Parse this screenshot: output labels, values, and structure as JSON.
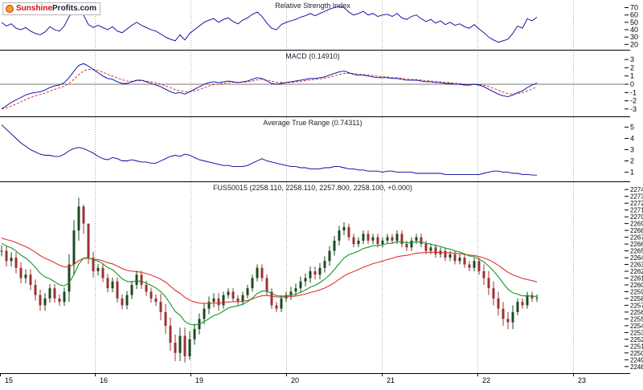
{
  "logo": {
    "part1": "Sunshine",
    "part2": "Profits.com"
  },
  "colors": {
    "line": "#00009b",
    "signal": "#cc2222",
    "ma_fast": "#119922",
    "ma_slow": "#dd3333",
    "up": "#1c4a21",
    "down": "#993333",
    "grid": "#a8a8a8",
    "axis": "#000000",
    "zero": "#777777",
    "title": "#222233"
  },
  "x_axis": {
    "labels": [
      "15",
      "16",
      "19",
      "20",
      "21",
      "22",
      "23"
    ],
    "positions": [
      0,
      118,
      237,
      356,
      475,
      594,
      713
    ]
  },
  "chart_data": [
    {
      "type": "line",
      "title": "Relative Strength Index",
      "yticks": [
        70,
        60,
        50,
        40,
        30,
        20
      ],
      "ylim": [
        16,
        76
      ],
      "values": [
        50,
        45,
        48,
        42,
        40,
        43,
        38,
        35,
        33,
        37,
        44,
        40,
        38,
        45,
        58,
        65,
        68,
        60,
        47,
        43,
        46,
        43,
        40,
        44,
        38,
        36,
        41,
        46,
        50,
        46,
        43,
        40,
        38,
        34,
        30,
        27,
        25,
        33,
        26,
        35,
        40,
        45,
        50,
        53,
        55,
        50,
        54,
        56,
        51,
        48,
        53,
        56,
        61,
        64,
        58,
        49,
        42,
        40,
        47,
        50,
        52,
        54,
        57,
        59,
        62,
        59,
        62,
        65,
        68,
        70,
        72,
        70,
        64,
        60,
        62,
        65,
        60,
        62,
        58,
        60,
        61,
        58,
        62,
        56,
        54,
        58,
        60,
        55,
        51,
        54,
        49,
        52,
        47,
        50,
        46,
        48,
        44,
        42,
        47,
        41,
        36,
        30,
        26,
        23,
        25,
        27,
        35,
        45,
        42,
        55,
        52,
        57
      ]
    },
    {
      "type": "line",
      "title": "MACD (0.14910)",
      "current_value": 0.1491,
      "yticks": [
        3,
        2,
        1,
        0,
        -1,
        -2,
        -3
      ],
      "ylim": [
        -3.6,
        3.6
      ],
      "zero_line": true,
      "signal_period": 5,
      "values": [
        -3.0,
        -2.6,
        -2.2,
        -1.9,
        -1.6,
        -1.3,
        -1.1,
        -1.0,
        -0.9,
        -0.7,
        -0.4,
        -0.2,
        -0.1,
        0.2,
        0.8,
        1.6,
        2.3,
        2.5,
        2.2,
        1.8,
        1.4,
        1.0,
        0.7,
        0.6,
        0.3,
        0.1,
        0.1,
        0.3,
        0.5,
        0.5,
        0.3,
        0.1,
        -0.1,
        -0.3,
        -0.6,
        -0.9,
        -1.1,
        -1.0,
        -1.2,
        -0.9,
        -0.6,
        -0.3,
        0.0,
        0.2,
        0.3,
        0.2,
        0.3,
        0.4,
        0.3,
        0.2,
        0.3,
        0.4,
        0.6,
        0.8,
        0.7,
        0.4,
        0.1,
        0.0,
        0.1,
        0.2,
        0.3,
        0.4,
        0.5,
        0.6,
        0.7,
        0.7,
        0.8,
        0.9,
        1.1,
        1.3,
        1.5,
        1.6,
        1.4,
        1.2,
        1.1,
        1.1,
        1.0,
        0.9,
        0.8,
        0.8,
        0.8,
        0.7,
        0.7,
        0.6,
        0.5,
        0.5,
        0.5,
        0.4,
        0.3,
        0.3,
        0.2,
        0.2,
        0.1,
        0.1,
        0.0,
        0.0,
        -0.1,
        -0.1,
        0.0,
        -0.1,
        -0.3,
        -0.6,
        -0.9,
        -1.2,
        -1.4,
        -1.5,
        -1.3,
        -1.0,
        -0.8,
        -0.4,
        -0.1,
        0.149
      ]
    },
    {
      "type": "line",
      "title": "Average True Range (0.74311)",
      "current_value": 0.74311,
      "yticks": [
        5,
        4,
        3,
        2,
        1
      ],
      "ylim": [
        0.4,
        5.6
      ],
      "values": [
        5.2,
        4.8,
        4.4,
        4.0,
        3.6,
        3.3,
        3.0,
        2.8,
        2.6,
        2.5,
        2.5,
        2.4,
        2.4,
        2.6,
        2.9,
        3.1,
        3.2,
        3.1,
        2.9,
        2.7,
        2.4,
        2.2,
        2.1,
        2.3,
        2.2,
        2.0,
        2.0,
        2.1,
        2.0,
        1.9,
        1.9,
        1.8,
        1.8,
        2.0,
        2.2,
        2.4,
        2.5,
        2.4,
        2.6,
        2.5,
        2.3,
        2.1,
        2.0,
        1.9,
        1.8,
        1.7,
        1.6,
        1.6,
        1.5,
        1.5,
        1.5,
        1.6,
        1.8,
        2.0,
        2.2,
        2.0,
        1.9,
        1.8,
        1.7,
        1.6,
        1.5,
        1.5,
        1.4,
        1.4,
        1.3,
        1.3,
        1.3,
        1.4,
        1.4,
        1.5,
        1.5,
        1.4,
        1.3,
        1.3,
        1.2,
        1.2,
        1.1,
        1.1,
        1.1,
        1.0,
        1.1,
        1.1,
        1.0,
        1.0,
        1.0,
        1.0,
        0.9,
        0.9,
        0.9,
        0.9,
        0.9,
        0.9,
        0.8,
        0.8,
        0.8,
        0.8,
        0.8,
        0.8,
        0.8,
        0.8,
        0.9,
        1.0,
        1.1,
        1.1,
        1.0,
        1.0,
        0.9,
        0.9,
        0.8,
        0.8,
        0.75,
        0.74
      ]
    },
    {
      "type": "candlestick",
      "title": "FUS50015 (2258.110, 2258.110, 2257.800, 2258.100, +0.000)",
      "symbol": "FUS50015",
      "quote": {
        "open": 2258.11,
        "high": 2258.11,
        "low": 2257.8,
        "close": 2258.1,
        "change": "+0.000"
      },
      "yticks": [
        2274,
        2273,
        2272,
        2271,
        2270,
        2269,
        2268,
        2267,
        2266,
        2265,
        2264,
        2263,
        2262,
        2261,
        2260,
        2259,
        2258,
        2257,
        2256,
        2255,
        2254,
        2253,
        2252,
        2251,
        2250,
        2249,
        2248
      ],
      "ylim": [
        2247.5,
        2274.5
      ],
      "ma_periods": [
        12,
        30
      ],
      "ma_fast_seed": 2266.3,
      "ma_slow_seed": 2267.0,
      "high_values": [
        2265.8,
        2265.8,
        2264.8,
        2264.8,
        2263.3,
        2262.3,
        2262.3,
        2260.8,
        2259.3,
        2258.8,
        2260.1,
        2260.1,
        2258.6,
        2259.6,
        2264.5,
        2269.5,
        2272.8,
        2271.8,
        2268.5,
        2264.9,
        2263.1,
        2263.1,
        2261.6,
        2261.1,
        2261.1,
        2258.6,
        2259.1,
        2260.6,
        2262.1,
        2262.1,
        2260.6,
        2259.6,
        2258.6,
        2258.7,
        2257.2,
        2255.2,
        2252.7,
        2253.7,
        2253.7,
        2253.2,
        2254.3,
        2255.8,
        2257.3,
        2258.3,
        2258.8,
        2258.8,
        2259.0,
        2259.5,
        2259.5,
        2258.5,
        2259.0,
        2260.0,
        2261.5,
        2263.0,
        2263.0,
        2261.5,
        2259.5,
        2257.5,
        2258.5,
        2259.0,
        2259.7,
        2260.2,
        2261.2,
        2261.7,
        2262.7,
        2262.7,
        2263.2,
        2264.2,
        2265.7,
        2267.2,
        2268.7,
        2269.2,
        2269.0,
        2267.5,
        2267.0,
        2268.0,
        2268.0,
        2267.5,
        2267.5,
        2267.0,
        2267.5,
        2267.5,
        2268.0,
        2268.0,
        2266.5,
        2267.0,
        2267.5,
        2267.5,
        2266.5,
        2266.0,
        2266.0,
        2265.5,
        2265.5,
        2265.0,
        2265.0,
        2264.5,
        2264.5,
        2263.5,
        2264.0,
        2264.0,
        2263.0,
        2262.0,
        2260.5,
        2259.0,
        2257.5,
        2256.0,
        2257.0,
        2258.0,
        2258.0,
        2259.0,
        2259.0,
        2258.6
      ],
      "low_values": [
        2264.2,
        2262.7,
        2262.7,
        2261.7,
        2260.2,
        2260.2,
        2259.2,
        2257.7,
        2256.2,
        2256.2,
        2257.4,
        2257.4,
        2256.9,
        2256.9,
        2257.5,
        2261.5,
        2266.5,
        2267.5,
        2263.1,
        2261.1,
        2261.4,
        2260.4,
        2258.9,
        2258.9,
        2257.4,
        2256.4,
        2256.4,
        2257.9,
        2259.4,
        2259.4,
        2258.4,
        2257.4,
        2256.9,
        2254.8,
        2252.8,
        2250.3,
        2248.8,
        2248.8,
        2248.6,
        2249.0,
        2251.2,
        2252.7,
        2254.2,
        2255.7,
        2256.7,
        2256.2,
        2256.5,
        2258.0,
        2257.5,
        2257.0,
        2257.0,
        2258.0,
        2259.0,
        2260.5,
        2260.5,
        2258.5,
        2256.5,
        2256.0,
        2256.0,
        2257.5,
        2257.8,
        2258.3,
        2258.8,
        2259.8,
        2260.3,
        2260.8,
        2260.8,
        2261.8,
        2262.8,
        2264.3,
        2265.8,
        2267.3,
        2266.5,
        2265.5,
        2265.5,
        2266.0,
        2266.0,
        2266.0,
        2265.5,
        2265.5,
        2266.0,
        2266.0,
        2266.0,
        2265.5,
        2265.0,
        2265.0,
        2266.0,
        2265.5,
        2264.5,
        2264.5,
        2264.0,
        2264.0,
        2263.5,
        2263.5,
        2263.0,
        2263.0,
        2262.5,
        2262.0,
        2262.0,
        2261.5,
        2260.0,
        2258.5,
        2257.0,
        2255.5,
        2254.0,
        2253.5,
        2253.5,
        2255.5,
        2256.5,
        2256.5,
        2257.5,
        2257.5
      ],
      "close_values": [
        2265.0,
        2263.5,
        2264.0,
        2262.5,
        2261.0,
        2261.5,
        2260.0,
        2258.5,
        2257.0,
        2258.0,
        2259.5,
        2258.0,
        2257.5,
        2259.0,
        2263.0,
        2268.0,
        2271.5,
        2269.0,
        2264.0,
        2262.0,
        2262.5,
        2261.0,
        2259.5,
        2260.5,
        2258.0,
        2257.0,
        2258.5,
        2260.0,
        2261.5,
        2260.0,
        2259.0,
        2258.0,
        2257.5,
        2256.0,
        2254.0,
        2251.5,
        2250.0,
        2252.5,
        2249.5,
        2252.0,
        2253.5,
        2255.0,
        2256.5,
        2257.5,
        2258.0,
        2257.0,
        2258.5,
        2259.0,
        2258.0,
        2257.5,
        2258.5,
        2259.5,
        2261.0,
        2262.5,
        2261.0,
        2259.0,
        2257.0,
        2256.5,
        2258.0,
        2258.5,
        2259.0,
        2259.5,
        2260.5,
        2261.0,
        2262.0,
        2261.5,
        2262.5,
        2263.5,
        2265.0,
        2266.5,
        2268.0,
        2268.5,
        2267.0,
        2266.0,
        2266.5,
        2267.5,
        2266.5,
        2267.0,
        2266.0,
        2266.5,
        2267.0,
        2266.5,
        2267.5,
        2266.0,
        2265.5,
        2266.5,
        2267.0,
        2266.0,
        2265.0,
        2265.5,
        2264.5,
        2265.0,
        2264.0,
        2264.5,
        2263.5,
        2264.0,
        2263.0,
        2262.5,
        2263.5,
        2262.0,
        2261.0,
        2259.5,
        2258.0,
        2256.5,
        2255.0,
        2254.5,
        2256.0,
        2257.5,
        2257.0,
        2258.5,
        2258.0,
        2258.1
      ]
    }
  ]
}
